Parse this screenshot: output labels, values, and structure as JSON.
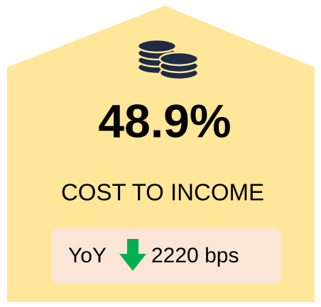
{
  "kpi": {
    "value": "48.9%",
    "label": "COST TO INCOME",
    "change": {
      "period": "YoY",
      "amount": "2220 bps"
    }
  }
}
